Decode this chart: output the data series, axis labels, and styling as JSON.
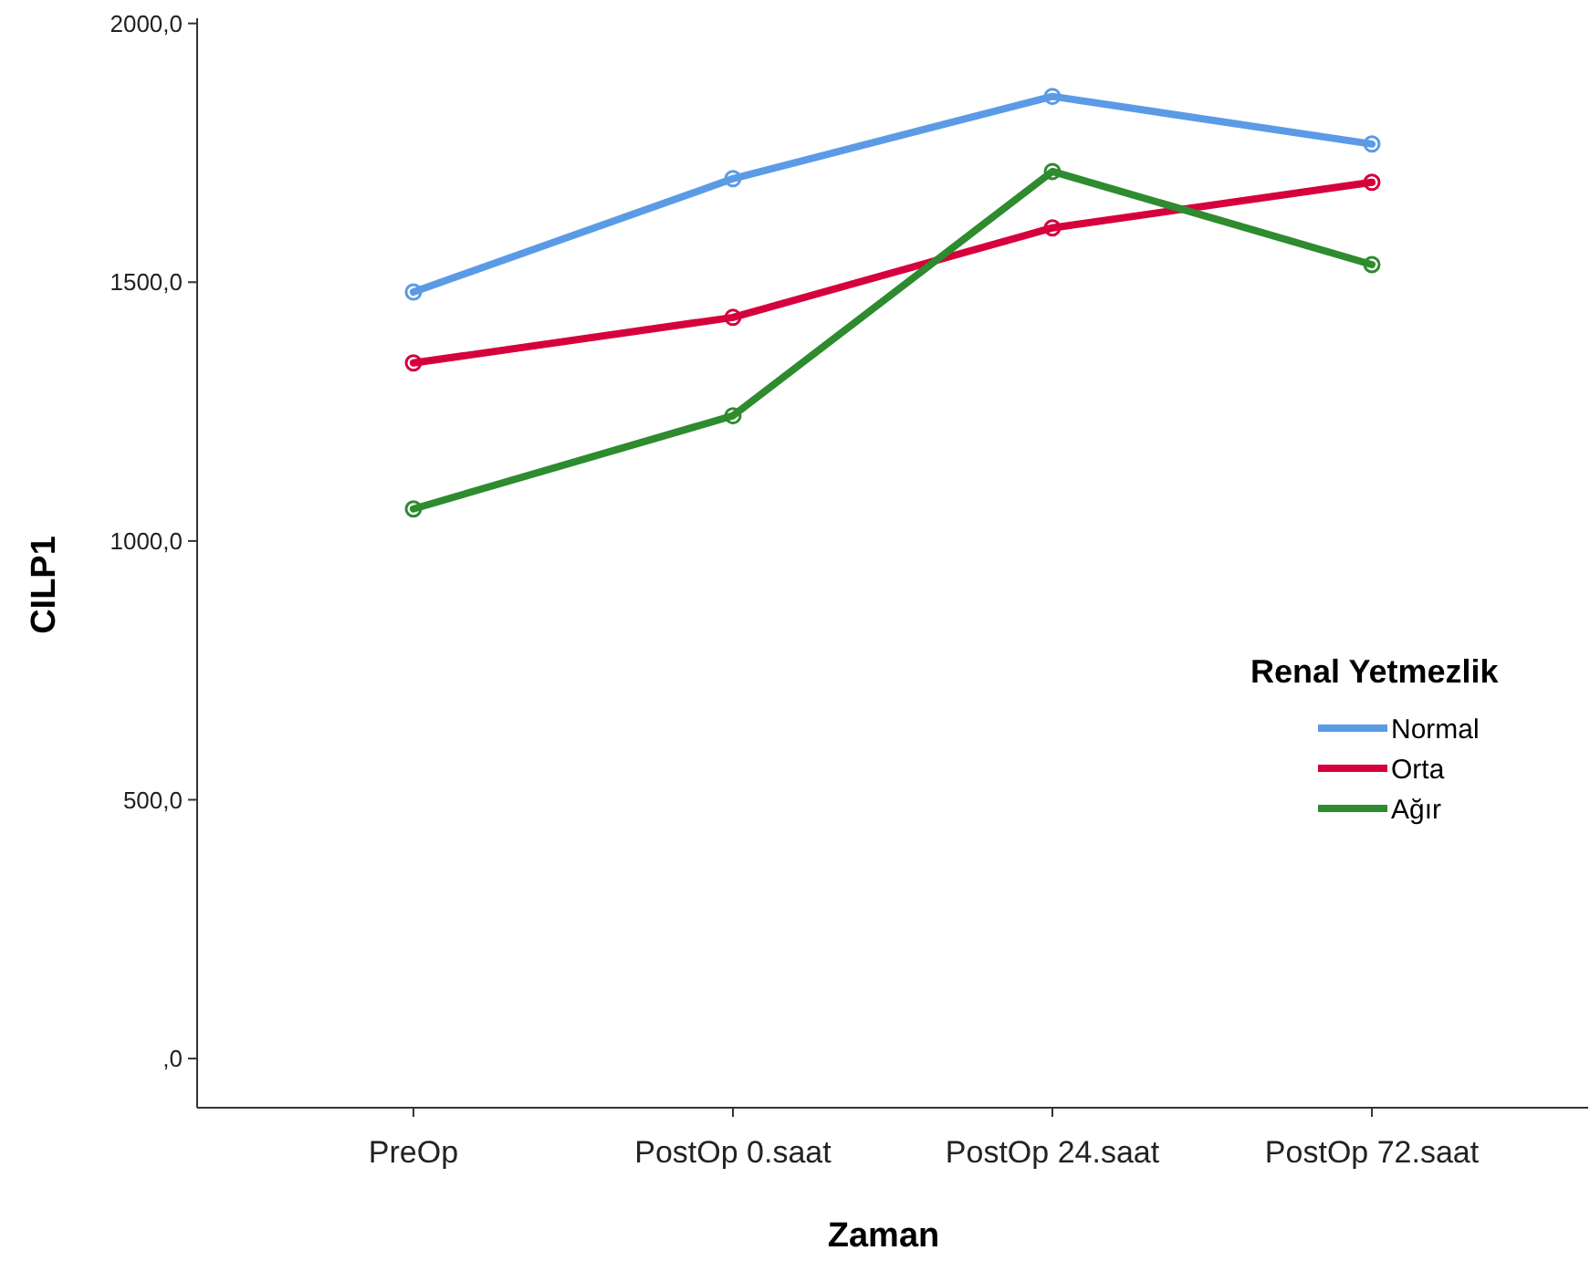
{
  "chart_data": {
    "type": "line",
    "xlabel": "Zaman",
    "ylabel": "CILP1",
    "legend_title": "Renal Yetmezlik",
    "legend": "right",
    "marker": "circle",
    "line_style": "solid",
    "grid": false,
    "categories": [
      "PreOp",
      "PostOp 0.saat",
      "PostOp 24.saat",
      "PostOp 72.saat"
    ],
    "ylim": [
      -95,
      2010
    ],
    "yticks": [
      {
        "value": 0,
        "label": ",0"
      },
      {
        "value": 500,
        "label": "500,0"
      },
      {
        "value": 1000,
        "label": "1000,0"
      },
      {
        "value": 1500,
        "label": "1500,0"
      },
      {
        "value": 2000,
        "label": "2000,0"
      }
    ],
    "series": [
      {
        "name": "Normal",
        "color": "#5b9be6",
        "values": [
          1481,
          1700,
          1859,
          1767
        ]
      },
      {
        "name": "Orta",
        "color": "#d6003c",
        "values": [
          1344,
          1432,
          1605,
          1693
        ]
      },
      {
        "name": "Ağır",
        "color": "#2e8b2e",
        "values": [
          1062,
          1242,
          1714,
          1534
        ]
      }
    ]
  }
}
